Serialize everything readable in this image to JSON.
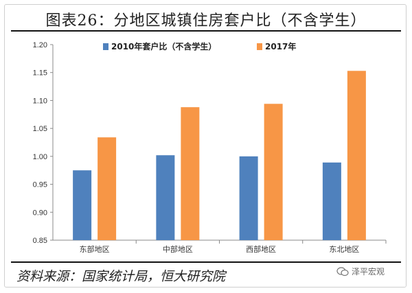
{
  "title": "图表26：分地区城镇住房套户比（不含学生）",
  "footer": "资料来源：国家统计局，恒大研究院",
  "brand": "泽平宏观",
  "colors": {
    "series1": "#4f81bd",
    "series2": "#f79646"
  },
  "chart_data": {
    "type": "bar",
    "categories": [
      "东部地区",
      "中部地区",
      "西部地区",
      "东北地区"
    ],
    "series": [
      {
        "name": "2010年套户比（不含学生）",
        "values": [
          0.975,
          1.002,
          1.0,
          0.989
        ]
      },
      {
        "name": "2017年",
        "values": [
          1.034,
          1.088,
          1.094,
          1.153
        ]
      }
    ],
    "ylim": [
      0.85,
      1.2
    ],
    "yticks": [
      "0.85",
      "0.90",
      "0.95",
      "1.00",
      "1.05",
      "1.10",
      "1.15",
      "1.20"
    ],
    "legend_position": "top",
    "grid": false
  }
}
